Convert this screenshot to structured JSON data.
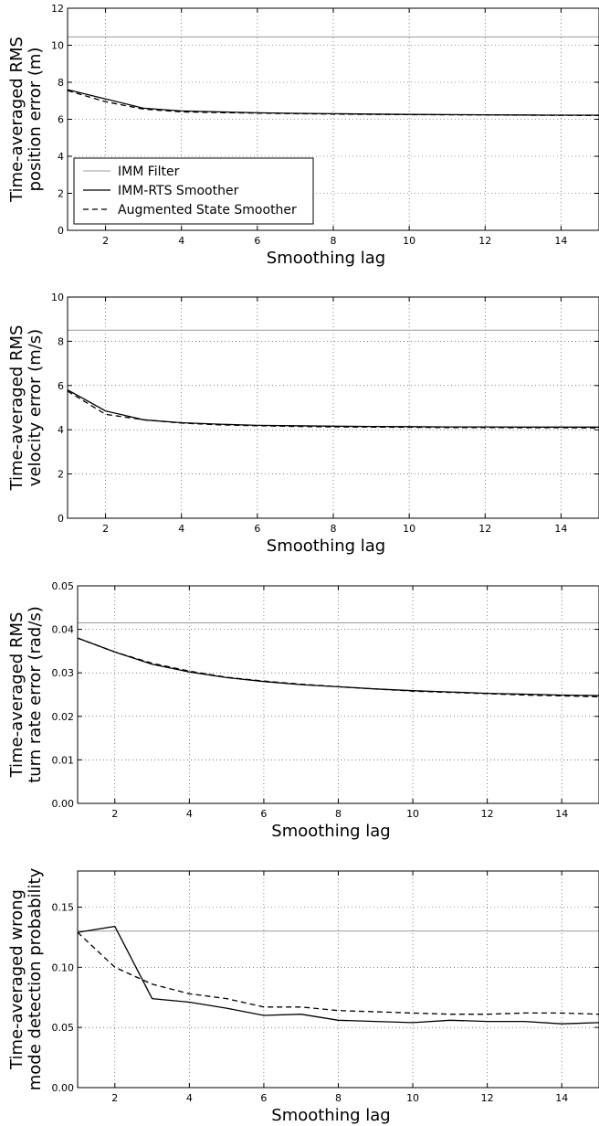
{
  "chart_data": [
    {
      "type": "line",
      "xlabel": "Smoothing lag",
      "ylabel_lines": [
        "Time-averaged RMS",
        "position error (m)"
      ],
      "xlim": [
        1,
        15
      ],
      "ylim": [
        0,
        12
      ],
      "xticks": [
        2,
        4,
        6,
        8,
        10,
        12,
        14
      ],
      "yticks": [
        0,
        2,
        4,
        6,
        8,
        10,
        12
      ],
      "ytick_labels": [
        "0",
        "2",
        "4",
        "6",
        "8",
        "10",
        "12"
      ],
      "grid": true,
      "x": [
        1,
        2,
        3,
        4,
        5,
        6,
        7,
        8,
        9,
        10,
        11,
        12,
        13,
        14,
        15
      ],
      "series": [
        {
          "name": "IMM Filter",
          "style": "solid",
          "color": "#999999",
          "values": [
            10.45,
            10.45,
            10.45,
            10.45,
            10.45,
            10.45,
            10.45,
            10.45,
            10.45,
            10.45,
            10.45,
            10.45,
            10.45,
            10.45,
            10.45
          ]
        },
        {
          "name": "IMM-RTS Smoother",
          "style": "solid",
          "color": "#000000",
          "values": [
            7.6,
            7.1,
            6.6,
            6.45,
            6.4,
            6.35,
            6.32,
            6.3,
            6.28,
            6.26,
            6.25,
            6.24,
            6.23,
            6.22,
            6.22
          ]
        },
        {
          "name": "Augmented State Smoother",
          "style": "dashed",
          "color": "#000000",
          "values": [
            7.55,
            6.95,
            6.55,
            6.4,
            6.36,
            6.33,
            6.3,
            6.28,
            6.26,
            6.25,
            6.24,
            6.23,
            6.22,
            6.21,
            6.2
          ]
        }
      ],
      "legend": {
        "position": "lower-left",
        "entries": [
          "IMM Filter",
          "IMM-RTS Smoother",
          "Augmented State Smoother"
        ]
      }
    },
    {
      "type": "line",
      "xlabel": "Smoothing lag",
      "ylabel_lines": [
        "Time-averaged RMS",
        "velocity error (m/s)"
      ],
      "xlim": [
        1,
        15
      ],
      "ylim": [
        0,
        10
      ],
      "xticks": [
        2,
        4,
        6,
        8,
        10,
        12,
        14
      ],
      "yticks": [
        0,
        2,
        4,
        6,
        8,
        10
      ],
      "ytick_labels": [
        "0",
        "2",
        "4",
        "6",
        "8",
        "10"
      ],
      "grid": true,
      "x": [
        1,
        2,
        3,
        4,
        5,
        6,
        7,
        8,
        9,
        10,
        11,
        12,
        13,
        14,
        15
      ],
      "series": [
        {
          "name": "IMM Filter",
          "style": "solid",
          "color": "#999999",
          "values": [
            8.5,
            8.5,
            8.5,
            8.5,
            8.5,
            8.5,
            8.5,
            8.5,
            8.5,
            8.5,
            8.5,
            8.5,
            8.5,
            8.5,
            8.5
          ]
        },
        {
          "name": "IMM-RTS Smoother",
          "style": "solid",
          "color": "#000000",
          "values": [
            5.8,
            4.85,
            4.45,
            4.32,
            4.25,
            4.2,
            4.18,
            4.16,
            4.15,
            4.14,
            4.13,
            4.13,
            4.12,
            4.12,
            4.12
          ]
        },
        {
          "name": "Augmented State Smoother",
          "style": "dashed",
          "color": "#000000",
          "values": [
            5.75,
            4.7,
            4.45,
            4.3,
            4.22,
            4.18,
            4.15,
            4.13,
            4.12,
            4.11,
            4.1,
            4.1,
            4.09,
            4.09,
            4.08
          ]
        }
      ]
    },
    {
      "type": "line",
      "xlabel": "Smoothing lag",
      "ylabel_lines": [
        "Time-averaged RMS",
        "turn rate error (rad/s)"
      ],
      "xlim": [
        1,
        15
      ],
      "ylim": [
        0,
        0.05
      ],
      "xticks": [
        2,
        4,
        6,
        8,
        10,
        12,
        14
      ],
      "yticks": [
        0,
        0.01,
        0.02,
        0.03,
        0.04,
        0.05
      ],
      "ytick_labels": [
        "0.00",
        "0.01",
        "0.02",
        "0.03",
        "0.04",
        "0.05"
      ],
      "grid": true,
      "x": [
        1,
        2,
        3,
        4,
        5,
        6,
        7,
        8,
        9,
        10,
        11,
        12,
        13,
        14,
        15
      ],
      "series": [
        {
          "name": "IMM Filter",
          "style": "solid",
          "color": "#999999",
          "values": [
            0.0415,
            0.0415,
            0.0415,
            0.0415,
            0.0415,
            0.0415,
            0.0415,
            0.0415,
            0.0415,
            0.0415,
            0.0415,
            0.0415,
            0.0415,
            0.0415,
            0.0415
          ]
        },
        {
          "name": "IMM-RTS Smoother",
          "style": "solid",
          "color": "#000000",
          "values": [
            0.038,
            0.0348,
            0.032,
            0.0302,
            0.0289,
            0.028,
            0.0273,
            0.0268,
            0.0263,
            0.0259,
            0.0256,
            0.0253,
            0.0251,
            0.0249,
            0.0248
          ]
        },
        {
          "name": "Augmented State Smoother",
          "style": "dashed",
          "color": "#000000",
          "values": [
            0.038,
            0.0348,
            0.0322,
            0.0304,
            0.029,
            0.0281,
            0.0274,
            0.0268,
            0.0263,
            0.0258,
            0.0255,
            0.0252,
            0.0249,
            0.0247,
            0.0245
          ]
        }
      ]
    },
    {
      "type": "line",
      "xlabel": "Smoothing lag",
      "ylabel_lines": [
        "Time-averaged wrong",
        "mode detection probability"
      ],
      "xlim": [
        1,
        15
      ],
      "ylim": [
        0,
        0.18
      ],
      "xticks": [
        2,
        4,
        6,
        8,
        10,
        12,
        14
      ],
      "yticks": [
        0,
        0.05,
        0.1,
        0.15
      ],
      "ytick_labels": [
        "0.00",
        "0.05",
        "0.10",
        "0.15"
      ],
      "grid": true,
      "x": [
        1,
        2,
        3,
        4,
        5,
        6,
        7,
        8,
        9,
        10,
        11,
        12,
        13,
        14,
        15
      ],
      "series": [
        {
          "name": "IMM Filter",
          "style": "solid",
          "color": "#999999",
          "values": [
            0.13,
            0.13,
            0.13,
            0.13,
            0.13,
            0.13,
            0.13,
            0.13,
            0.13,
            0.13,
            0.13,
            0.13,
            0.13,
            0.13,
            0.13
          ]
        },
        {
          "name": "IMM-RTS Smoother",
          "style": "solid",
          "color": "#000000",
          "values": [
            0.129,
            0.134,
            0.074,
            0.071,
            0.066,
            0.06,
            0.061,
            0.056,
            0.055,
            0.054,
            0.056,
            0.055,
            0.055,
            0.053,
            0.054
          ]
        },
        {
          "name": "Augmented State Smoother",
          "style": "dashed",
          "color": "#000000",
          "values": [
            0.129,
            0.1,
            0.086,
            0.078,
            0.074,
            0.067,
            0.067,
            0.064,
            0.063,
            0.062,
            0.061,
            0.061,
            0.062,
            0.062,
            0.061
          ]
        }
      ]
    }
  ]
}
